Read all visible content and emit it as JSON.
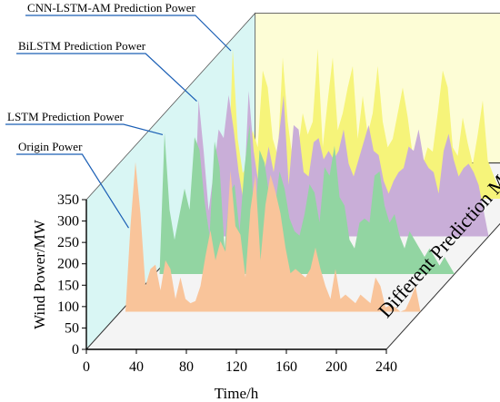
{
  "chart_data": {
    "type": "area",
    "variant": "3d-waterfall",
    "xlabel": "Time/h",
    "ylabel": "Wind Power/MW",
    "zlabel": "Different Prediction Model",
    "x_ticks": [
      "0",
      "40",
      "80",
      "120",
      "160",
      "200",
      "240"
    ],
    "y_ticks": [
      "0",
      "50",
      "100",
      "150",
      "200",
      "250",
      "300",
      "350"
    ],
    "xlim": [
      0,
      240
    ],
    "ylim": [
      0,
      350
    ],
    "grid": false,
    "legend": "callout labels pointing to each series",
    "series": [
      {
        "name": "Origin Power",
        "color": "#f9c49a",
        "x": [
          0,
          4,
          8,
          12,
          16,
          20,
          24,
          28,
          32,
          36,
          40,
          44,
          48,
          52,
          56,
          60,
          64,
          68,
          72,
          76,
          80,
          84,
          88,
          92,
          96,
          100,
          104,
          108,
          112,
          116,
          120,
          124,
          128,
          132,
          136,
          140,
          144,
          148,
          152,
          156,
          160,
          164,
          168,
          172,
          176,
          180,
          184,
          188,
          192,
          196,
          200,
          204,
          208,
          212,
          216,
          220,
          224,
          228,
          232,
          236,
          240
        ],
        "values": [
          0,
          0,
          200,
          350,
          230,
          60,
          100,
          110,
          50,
          120,
          100,
          30,
          80,
          30,
          20,
          25,
          60,
          130,
          190,
          120,
          165,
          140,
          330,
          200,
          180,
          80,
          240,
          320,
          120,
          250,
          320,
          280,
          230,
          150,
          90,
          100,
          90,
          80,
          100,
          150,
          100,
          60,
          30,
          100,
          30,
          40,
          30,
          20,
          40,
          30,
          20,
          80,
          60,
          10,
          15,
          10,
          0,
          5,
          30,
          60,
          0
        ]
      },
      {
        "name": "LSTM Prediction Power",
        "color": "#92d5a2",
        "x": [
          0,
          4,
          8,
          12,
          16,
          20,
          24,
          28,
          32,
          36,
          40,
          44,
          48,
          52,
          56,
          60,
          64,
          68,
          72,
          76,
          80,
          84,
          88,
          92,
          96,
          100,
          104,
          108,
          112,
          116,
          120,
          124,
          128,
          132,
          136,
          140,
          144,
          148,
          152,
          156,
          160,
          164,
          168,
          172,
          176,
          180,
          184,
          188,
          192,
          196,
          200,
          204,
          208,
          212,
          216,
          220,
          224,
          228,
          232,
          236,
          240
        ],
        "values": [
          0,
          0,
          330,
          150,
          80,
          140,
          200,
          150,
          320,
          290,
          170,
          90,
          310,
          250,
          60,
          190,
          210,
          100,
          250,
          350,
          100,
          290,
          260,
          180,
          150,
          240,
          200,
          130,
          100,
          90,
          140,
          210,
          190,
          120,
          250,
          230,
          300,
          180,
          160,
          80,
          60,
          120,
          130,
          120,
          230,
          240,
          160,
          120,
          140,
          90,
          60,
          100,
          80,
          60,
          40,
          60,
          40,
          20,
          40,
          20,
          0
        ]
      },
      {
        "name": "BiLSTM Prediction Power",
        "color": "#c9aed8",
        "x": [
          0,
          4,
          8,
          12,
          16,
          20,
          24,
          28,
          32,
          36,
          40,
          44,
          48,
          52,
          56,
          60,
          64,
          68,
          72,
          76,
          80,
          84,
          88,
          92,
          96,
          100,
          104,
          108,
          112,
          116,
          120,
          124,
          128,
          132,
          136,
          140,
          144,
          148,
          152,
          156,
          160,
          164,
          168,
          172,
          176,
          180,
          184,
          188,
          192,
          196,
          200,
          204,
          208,
          212,
          216,
          220,
          224,
          228,
          232,
          236,
          240
        ],
        "values": [
          0,
          0,
          320,
          200,
          60,
          150,
          250,
          230,
          330,
          250,
          150,
          80,
          340,
          200,
          120,
          140,
          210,
          150,
          230,
          330,
          120,
          260,
          250,
          150,
          140,
          220,
          230,
          180,
          200,
          180,
          200,
          250,
          170,
          140,
          180,
          220,
          260,
          200,
          190,
          130,
          100,
          130,
          150,
          160,
          210,
          200,
          250,
          180,
          160,
          150,
          100,
          200,
          240,
          180,
          140,
          160,
          170,
          150,
          120,
          60,
          0
        ]
      },
      {
        "name": "CNN-LSTM-AM Prediction Power",
        "color": "#f6f47a",
        "x": [
          0,
          4,
          8,
          12,
          16,
          20,
          24,
          28,
          32,
          36,
          40,
          44,
          48,
          52,
          56,
          60,
          64,
          68,
          72,
          76,
          80,
          84,
          88,
          92,
          96,
          100,
          104,
          108,
          112,
          116,
          120,
          124,
          128,
          132,
          136,
          140,
          144,
          148,
          152,
          156,
          160,
          164,
          168,
          172,
          176,
          180,
          184,
          188,
          192,
          196,
          200,
          204,
          208,
          212,
          216,
          220,
          224,
          228,
          232,
          236,
          240
        ],
        "values": [
          0,
          0,
          350,
          140,
          60,
          80,
          160,
          120,
          300,
          260,
          140,
          100,
          330,
          180,
          90,
          110,
          200,
          150,
          180,
          350,
          120,
          230,
          330,
          160,
          200,
          260,
          310,
          140,
          240,
          150,
          200,
          310,
          180,
          120,
          140,
          200,
          260,
          190,
          100,
          70,
          80,
          120,
          110,
          200,
          300,
          260,
          120,
          100,
          190,
          130,
          80,
          150,
          230,
          90,
          60,
          30,
          40,
          30,
          20,
          10,
          0
        ]
      }
    ]
  }
}
